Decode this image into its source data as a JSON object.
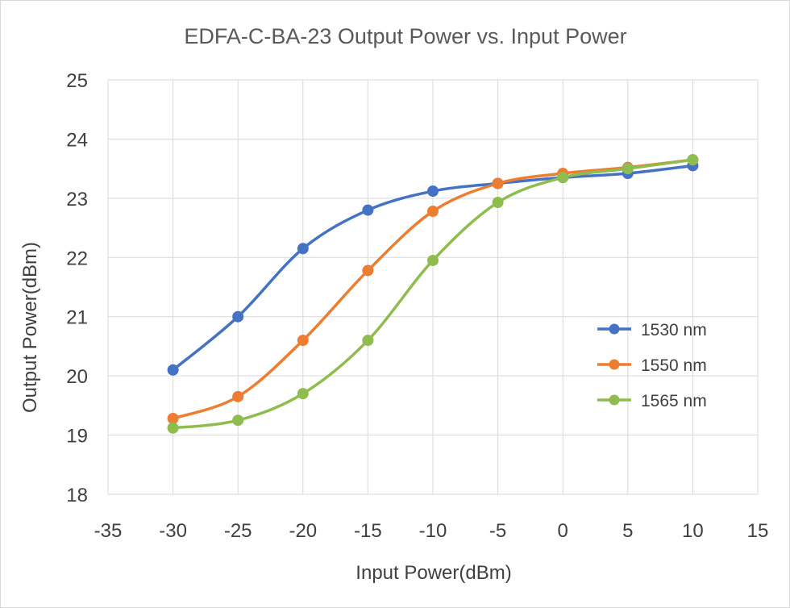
{
  "chart_data": {
    "type": "line",
    "title": "EDFA-C-BA-23  Output Power vs. Input Power",
    "xlabel": "Input Power(dBm)",
    "ylabel": "Output Power(dBm)",
    "xlim": [
      -35,
      15
    ],
    "ylim": [
      18,
      25
    ],
    "xticks": [
      -35,
      -30,
      -25,
      -20,
      -15,
      -10,
      -5,
      0,
      5,
      10,
      15
    ],
    "yticks": [
      18,
      19,
      20,
      21,
      22,
      23,
      24,
      25
    ],
    "grid": true,
    "smooth": true,
    "legend_position": "right",
    "x": [
      -30,
      -25,
      -20,
      -15,
      -10,
      -5,
      0,
      5,
      10
    ],
    "series": [
      {
        "name": "1530 nm",
        "color": "#4472c4",
        "values": [
          20.1,
          21.0,
          22.15,
          22.8,
          23.12,
          23.25,
          23.35,
          23.42,
          23.55
        ]
      },
      {
        "name": "1550 nm",
        "color": "#ed7d31",
        "values": [
          19.28,
          19.65,
          20.6,
          21.78,
          22.78,
          23.25,
          23.42,
          23.52,
          23.65
        ]
      },
      {
        "name": "1565 nm",
        "color": "#8fbc4f",
        "values": [
          19.12,
          19.25,
          19.7,
          20.6,
          21.95,
          22.93,
          23.35,
          23.5,
          23.65
        ]
      }
    ]
  }
}
